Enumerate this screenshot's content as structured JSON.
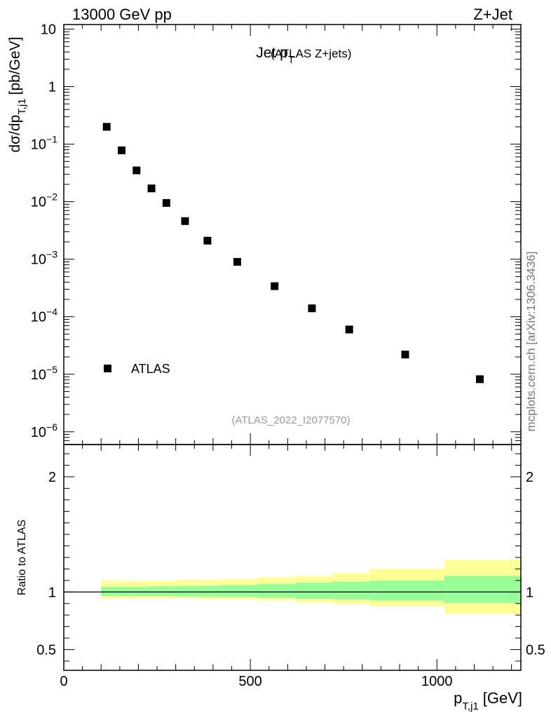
{
  "header": {
    "left": "13000 GeV pp",
    "right": "Z+Jet",
    "side_note": "mcplots.cern.ch [arXiv:1306.3436]"
  },
  "chart_data": [
    {
      "type": "scatter",
      "panel": "main",
      "title_main": "Jet p",
      "title_sub": "T",
      "title_extra": "(ATLAS Z+jets)",
      "analysis_tag": "(ATLAS_2022_I2077570)",
      "ylabel_main": "dσ/dp",
      "ylabel_sub": "T,j1",
      "ylabel_unit": "[pb/GeV]",
      "ylog": true,
      "ylim": [
        6e-07,
        12
      ],
      "xlim": [
        0,
        1225
      ],
      "y_ticks": [
        {
          "v": 1e-06,
          "base": "10",
          "exp": "−6"
        },
        {
          "v": 1e-05,
          "base": "10",
          "exp": "−5"
        },
        {
          "v": 0.0001,
          "base": "10",
          "exp": "−4"
        },
        {
          "v": 0.001,
          "base": "10",
          "exp": "−3"
        },
        {
          "v": 0.01,
          "base": "10",
          "exp": "−2"
        },
        {
          "v": 0.1,
          "base": "10",
          "exp": "−1"
        },
        {
          "v": 1,
          "base": "1",
          "exp": ""
        },
        {
          "v": 10,
          "base": "10",
          "exp": ""
        }
      ],
      "legend": {
        "placement": "bottom-left",
        "entries": [
          "ATLAS"
        ]
      },
      "series": [
        {
          "name": "ATLAS",
          "marker": "square",
          "color": "#000000",
          "x": [
            115,
            155,
            195,
            235,
            275,
            325,
            385,
            465,
            565,
            665,
            765,
            915,
            1115
          ],
          "y": [
            0.2,
            0.078,
            0.035,
            0.017,
            0.0095,
            0.0046,
            0.0021,
            0.0009,
            0.00034,
            0.00014,
            6e-05,
            2.2e-05,
            8.2e-06
          ]
        }
      ]
    },
    {
      "type": "area",
      "panel": "ratio",
      "ylabel": "Ratio to ATLAS",
      "ylim": [
        0.32,
        2.28
      ],
      "xlim": [
        0,
        1225
      ],
      "y_ticks": [
        0.5,
        1,
        2
      ],
      "y_tick_labels": [
        "0.5",
        "1",
        "2"
      ],
      "x_ticks": [
        0,
        500,
        1000
      ],
      "x_tick_labels": [
        "0",
        "500",
        "1000"
      ],
      "xlabel_main": "p",
      "xlabel_sub": "T,j1",
      "xlabel_unit": "[GeV]",
      "reference_line": 1,
      "bin_edges": [
        100,
        140,
        180,
        220,
        260,
        300,
        360,
        420,
        520,
        620,
        720,
        820,
        1020,
        1225
      ],
      "band_outer": {
        "color": "#ffff99",
        "lo": [
          0.94,
          0.945,
          0.945,
          0.945,
          0.945,
          0.945,
          0.94,
          0.935,
          0.925,
          0.91,
          0.895,
          0.875,
          0.81
        ],
        "hi": [
          1.1,
          1.095,
          1.095,
          1.1,
          1.1,
          1.105,
          1.105,
          1.11,
          1.125,
          1.14,
          1.165,
          1.2,
          1.28
        ]
      },
      "band_inner": {
        "color": "#99ff99",
        "lo": [
          0.965,
          0.965,
          0.965,
          0.965,
          0.965,
          0.962,
          0.96,
          0.957,
          0.95,
          0.94,
          0.935,
          0.925,
          0.905
        ],
        "hi": [
          1.045,
          1.045,
          1.045,
          1.05,
          1.05,
          1.052,
          1.055,
          1.06,
          1.07,
          1.08,
          1.09,
          1.1,
          1.14
        ]
      }
    }
  ]
}
